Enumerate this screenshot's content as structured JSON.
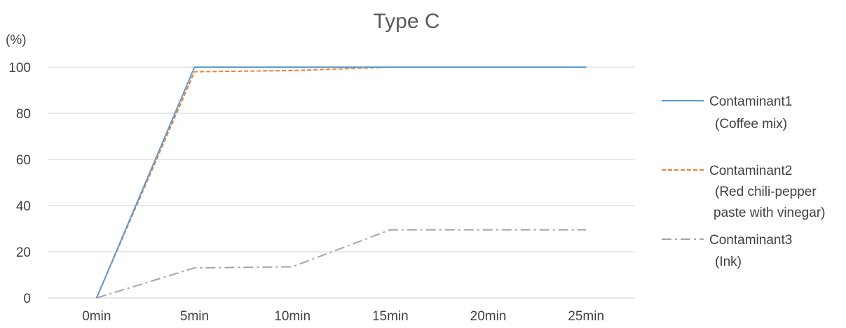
{
  "chart_data": {
    "type": "line",
    "title": "Type C",
    "ylabel": "(%)",
    "xlabel": "",
    "categories": [
      "0min",
      "5min",
      "10min",
      "15min",
      "20min",
      "25min"
    ],
    "ylim": [
      0,
      100
    ],
    "yticks": [
      0,
      20,
      40,
      60,
      80,
      100
    ],
    "grid": true,
    "legend_position": "right",
    "series": [
      {
        "name": "Contaminant1",
        "name_line2": "(Coffee mix)",
        "values": [
          0,
          100,
          100,
          100,
          100,
          100
        ],
        "color": "#5b9bd5",
        "dash": "solid"
      },
      {
        "name": "Contaminant2",
        "name_line2": "(Red chili-pepper",
        "name_line3": "paste with vinegar)",
        "values": [
          0,
          98,
          98.5,
          100,
          100,
          100
        ],
        "color": "#ed7d31",
        "dash": "dashed"
      },
      {
        "name": "Contaminant3",
        "name_line2": "(Ink)",
        "values": [
          0,
          13,
          13.5,
          29.5,
          29.5,
          29.5
        ],
        "color": "#a5a5a5",
        "dash": "dashdot"
      }
    ]
  }
}
